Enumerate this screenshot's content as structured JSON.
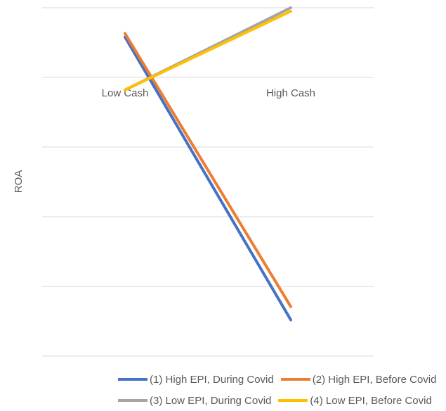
{
  "chart_data": {
    "type": "line",
    "title": "",
    "xlabel": "",
    "ylabel": "ROA",
    "categories": [
      "Low Cash",
      "High Cash"
    ],
    "ylim": [
      -4,
      1
    ],
    "grid": true,
    "legend_position": "bottom",
    "series": [
      {
        "name": "(1) High EPI, During Covid",
        "values": [
          0.58,
          -3.48
        ],
        "color": "#4472C4"
      },
      {
        "name": "(2) High EPI, Before Covid",
        "values": [
          0.63,
          -3.29
        ],
        "color": "#ED7D31"
      },
      {
        "name": "(3) Low EPI, During Covid",
        "values": [
          -0.18,
          1.0
        ],
        "color": "#A5A5A5"
      },
      {
        "name": "(4) Low EPI, Before Covid",
        "values": [
          -0.18,
          0.95
        ],
        "color": "#FFC000"
      }
    ]
  }
}
